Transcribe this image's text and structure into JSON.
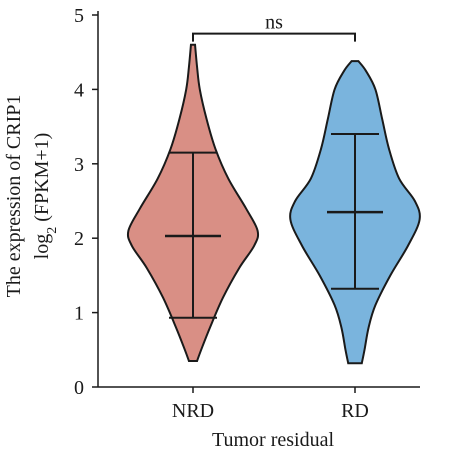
{
  "chart_data": {
    "type": "violin",
    "xlabel": "Tumor residual",
    "ylabel_line1": "The expression of CRIP1",
    "ylabel_line2_prefix": "log",
    "ylabel_line2_sub": "2",
    "ylabel_line2_suffix": " (FPKM+1)",
    "ylim": [
      0,
      5
    ],
    "yticks": [
      0,
      1,
      2,
      3,
      4,
      5
    ],
    "categories": [
      "NRD",
      "RD"
    ],
    "series": [
      {
        "category": "NRD",
        "color": "#d98f85",
        "min": 0.35,
        "max": 4.6,
        "mean": 2.03,
        "whisker_low": 0.93,
        "whisker_high": 3.15,
        "density": [
          [
            0.35,
            0.06
          ],
          [
            0.5,
            0.12
          ],
          [
            0.8,
            0.25
          ],
          [
            1.2,
            0.44
          ],
          [
            1.6,
            0.68
          ],
          [
            1.9,
            0.9
          ],
          [
            2.1,
            0.95
          ],
          [
            2.4,
            0.78
          ],
          [
            2.8,
            0.52
          ],
          [
            3.2,
            0.33
          ],
          [
            3.6,
            0.2
          ],
          [
            4.0,
            0.1
          ],
          [
            4.3,
            0.06
          ],
          [
            4.6,
            0.03
          ]
        ]
      },
      {
        "category": "RD",
        "color": "#7ab4dd",
        "min": 0.32,
        "max": 4.38,
        "mean": 2.35,
        "whisker_low": 1.32,
        "whisker_high": 3.4,
        "density": [
          [
            0.32,
            0.1
          ],
          [
            0.5,
            0.14
          ],
          [
            0.8,
            0.2
          ],
          [
            1.1,
            0.3
          ],
          [
            1.5,
            0.52
          ],
          [
            1.9,
            0.78
          ],
          [
            2.25,
            0.95
          ],
          [
            2.5,
            0.88
          ],
          [
            2.8,
            0.65
          ],
          [
            3.2,
            0.5
          ],
          [
            3.6,
            0.4
          ],
          [
            4.0,
            0.3
          ],
          [
            4.25,
            0.16
          ],
          [
            4.38,
            0.05
          ]
        ]
      }
    ],
    "annotation": {
      "text": "ns",
      "from": "NRD",
      "to": "RD",
      "y": 4.75
    }
  }
}
